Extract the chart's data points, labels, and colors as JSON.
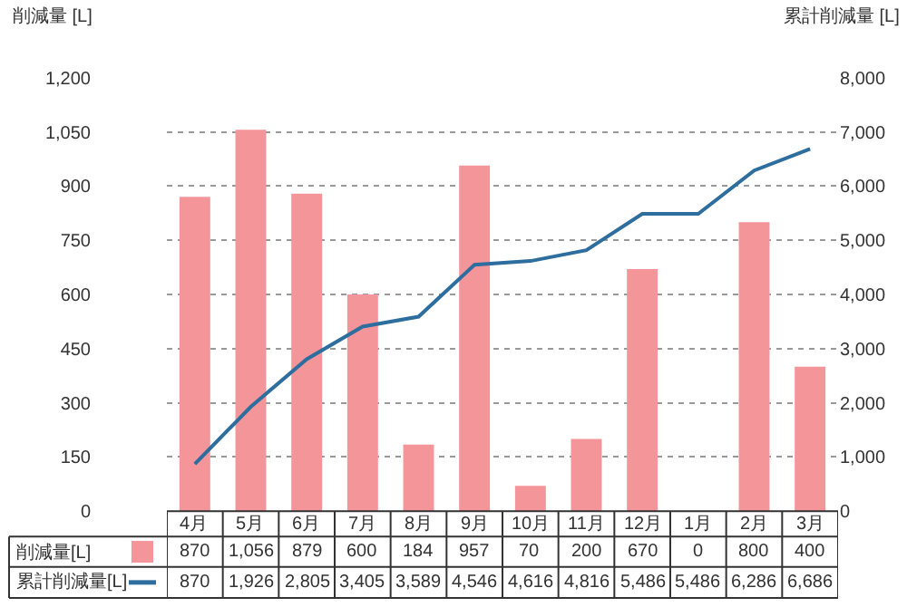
{
  "chart_data": {
    "type": "bar",
    "ylabel": "削減量 [L]",
    "y2label": "累計削減量 [L]",
    "categories": [
      "4月",
      "5月",
      "6月",
      "7月",
      "8月",
      "9月",
      "10月",
      "11月",
      "12月",
      "1月",
      "2月",
      "3月"
    ],
    "series": [
      {
        "name": "削減量[L]",
        "color": "#f4959a",
        "values": [
          870,
          1056,
          879,
          600,
          184,
          957,
          70,
          200,
          670,
          0,
          800,
          400
        ],
        "value_labels": [
          "870",
          "1,056",
          "879",
          "600",
          "184",
          "957",
          "70",
          "200",
          "670",
          "0",
          "800",
          "400"
        ]
      },
      {
        "name": "累計削減量[L]",
        "type": "line",
        "axis": "y2",
        "color": "#2e6e9e",
        "values": [
          870,
          1926,
          2805,
          3405,
          3589,
          4546,
          4616,
          4816,
          5486,
          5486,
          6286,
          6686
        ],
        "value_labels": [
          "870",
          "1,926",
          "2,805",
          "3,405",
          "3,589",
          "4,546",
          "4,616",
          "4,816",
          "5,486",
          "5,486",
          "6,286",
          "6,686"
        ]
      }
    ],
    "ylim": [
      0,
      1200
    ],
    "yticks": [
      {
        "value": 0,
        "label": "0"
      },
      {
        "value": 150,
        "label": "150"
      },
      {
        "value": 300,
        "label": "300"
      },
      {
        "value": 450,
        "label": "450"
      },
      {
        "value": 600,
        "label": "600"
      },
      {
        "value": 750,
        "label": "750"
      },
      {
        "value": 900,
        "label": "900"
      },
      {
        "value": 1050,
        "label": "1,050"
      },
      {
        "value": 1200,
        "label": "1,200"
      }
    ],
    "y2lim": [
      0,
      8000
    ],
    "y2ticks": [
      {
        "value": 0,
        "label": "0"
      },
      {
        "value": 1000,
        "label": "1,000"
      },
      {
        "value": 2000,
        "label": "2,000"
      },
      {
        "value": 3000,
        "label": "3,000"
      },
      {
        "value": 4000,
        "label": "4,000"
      },
      {
        "value": 5000,
        "label": "5,000"
      },
      {
        "value": 6000,
        "label": "6,000"
      },
      {
        "value": 7000,
        "label": "7,000"
      },
      {
        "value": 8000,
        "label": "8,000"
      }
    ],
    "grid": "y",
    "legend": "bottom left",
    "marker": "none",
    "line_style": "solid"
  }
}
